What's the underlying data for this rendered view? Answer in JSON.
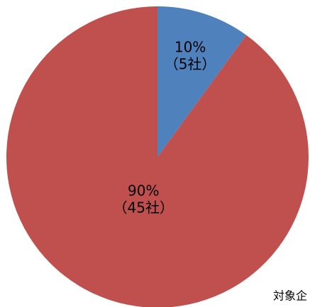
{
  "chart_data": {
    "type": "pie",
    "categories": [
      null,
      null
    ],
    "values": [
      10,
      90
    ],
    "value_labels": [
      "10%",
      "90%"
    ],
    "counts": [
      5,
      45
    ],
    "count_labels": [
      "（5社）",
      "（45社）"
    ],
    "colors": [
      "#4f81bd",
      "#c0504d"
    ],
    "note": "対象企"
  }
}
